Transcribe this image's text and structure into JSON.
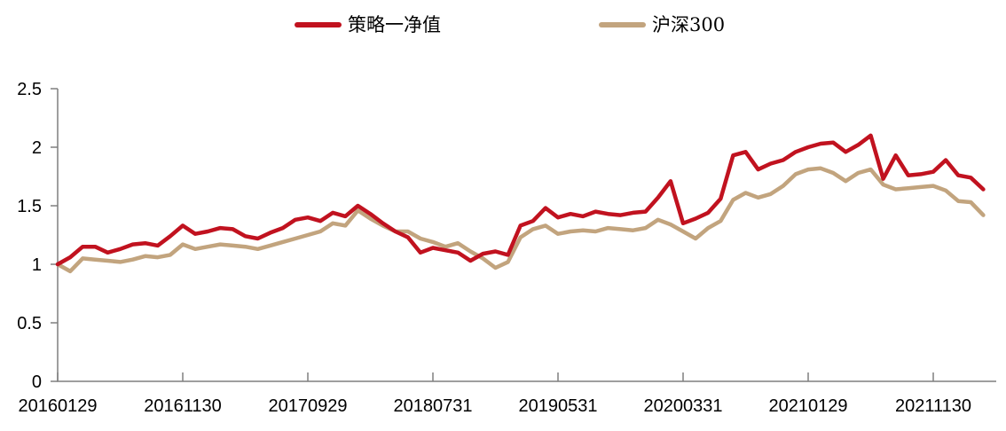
{
  "page": {
    "background": "#ffffff"
  },
  "legend": {
    "items": [
      {
        "label": "策略一净值",
        "color": "#C1121F"
      },
      {
        "label": "沪深300",
        "color": "#C2A47E"
      }
    ]
  },
  "chart_data": {
    "type": "line",
    "title": "",
    "xlabel": "",
    "ylabel": "",
    "grid": false,
    "legend_position": "top-center",
    "axis_color": "#7f7f7f",
    "text_color": "#000000",
    "ylim": [
      0,
      2.5
    ],
    "y_ticks": [
      0,
      0.5,
      1,
      1.5,
      2,
      2.5
    ],
    "x_tick_interval": 10,
    "x_tick_labels": [
      "20160129",
      "20161130",
      "20170929",
      "20180731",
      "20190531",
      "20200331",
      "20210129",
      "20211130"
    ],
    "months": [
      "2016-01",
      "2016-02",
      "2016-03",
      "2016-04",
      "2016-05",
      "2016-06",
      "2016-07",
      "2016-08",
      "2016-09",
      "2016-10",
      "2016-11",
      "2016-12",
      "2017-01",
      "2017-02",
      "2017-03",
      "2017-04",
      "2017-05",
      "2017-06",
      "2017-07",
      "2017-08",
      "2017-09",
      "2017-10",
      "2017-11",
      "2017-12",
      "2018-01",
      "2018-02",
      "2018-03",
      "2018-04",
      "2018-05",
      "2018-06",
      "2018-07",
      "2018-08",
      "2018-09",
      "2018-10",
      "2018-11",
      "2018-12",
      "2019-01",
      "2019-02",
      "2019-03",
      "2019-04",
      "2019-05",
      "2019-06",
      "2019-07",
      "2019-08",
      "2019-09",
      "2019-10",
      "2019-11",
      "2019-12",
      "2020-01",
      "2020-02",
      "2020-03",
      "2020-04",
      "2020-05",
      "2020-06",
      "2020-07",
      "2020-08",
      "2020-09",
      "2020-10",
      "2020-11",
      "2020-12",
      "2021-01",
      "2021-02",
      "2021-03",
      "2021-04",
      "2021-05",
      "2021-06",
      "2021-07",
      "2021-08",
      "2021-09",
      "2021-10",
      "2021-11",
      "2021-12",
      "2022-01",
      "2022-02",
      "2022-03"
    ],
    "series": [
      {
        "name": "策略一净值",
        "color": "#C1121F",
        "values": [
          1.0,
          1.06,
          1.15,
          1.15,
          1.1,
          1.13,
          1.17,
          1.18,
          1.16,
          1.24,
          1.33,
          1.26,
          1.28,
          1.31,
          1.3,
          1.24,
          1.22,
          1.27,
          1.31,
          1.38,
          1.4,
          1.37,
          1.44,
          1.41,
          1.5,
          1.43,
          1.35,
          1.28,
          1.23,
          1.1,
          1.14,
          1.12,
          1.1,
          1.03,
          1.09,
          1.11,
          1.08,
          1.33,
          1.37,
          1.48,
          1.4,
          1.43,
          1.41,
          1.45,
          1.43,
          1.42,
          1.44,
          1.45,
          1.57,
          1.71,
          1.35,
          1.39,
          1.44,
          1.56,
          1.93,
          1.96,
          1.81,
          1.86,
          1.89,
          1.96,
          2.0,
          2.03,
          2.04,
          1.96,
          2.02,
          2.1,
          1.73,
          1.93,
          1.76,
          1.77,
          1.79,
          1.89,
          1.76,
          1.74,
          1.64
        ]
      },
      {
        "name": "沪深300",
        "color": "#C2A47E",
        "values": [
          1.0,
          0.94,
          1.05,
          1.04,
          1.03,
          1.02,
          1.04,
          1.07,
          1.06,
          1.08,
          1.17,
          1.13,
          1.15,
          1.17,
          1.16,
          1.15,
          1.13,
          1.16,
          1.19,
          1.22,
          1.25,
          1.28,
          1.35,
          1.33,
          1.46,
          1.39,
          1.33,
          1.28,
          1.28,
          1.22,
          1.19,
          1.15,
          1.18,
          1.11,
          1.05,
          0.97,
          1.02,
          1.23,
          1.3,
          1.33,
          1.26,
          1.28,
          1.29,
          1.28,
          1.31,
          1.3,
          1.29,
          1.31,
          1.38,
          1.34,
          1.28,
          1.22,
          1.31,
          1.37,
          1.55,
          1.61,
          1.57,
          1.6,
          1.67,
          1.77,
          1.81,
          1.82,
          1.78,
          1.71,
          1.78,
          1.81,
          1.68,
          1.64,
          1.65,
          1.66,
          1.67,
          1.63,
          1.54,
          1.53,
          1.42
        ]
      }
    ]
  }
}
